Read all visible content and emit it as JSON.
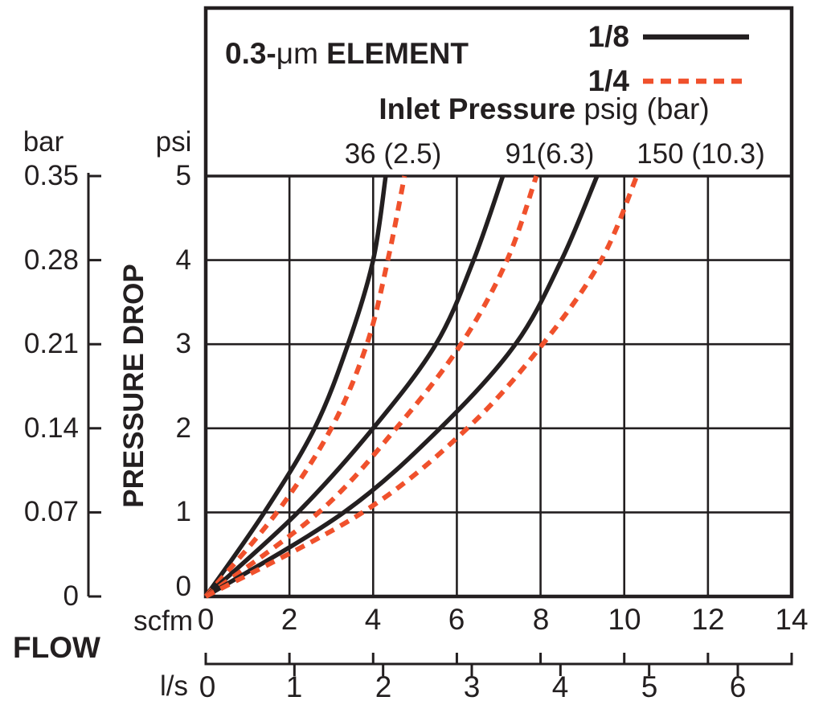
{
  "colors": {
    "ink": "#231F20",
    "accent": "#F0512C",
    "background": "#FFFFFF"
  },
  "header": {
    "title_prefix": "0.3-",
    "title_unit": "μm",
    "title_suffix": " ELEMENT",
    "inlet_label_bold": "Inlet Pressure",
    "inlet_label_normal": " psig (bar)",
    "pressure_labels": [
      "36 (2.5)",
      "91(6.3)",
      "150 (10.3)"
    ]
  },
  "legend": {
    "items": [
      {
        "label": "1/8",
        "style": "solid",
        "color": "#231F20"
      },
      {
        "label": "1/4",
        "style": "dashed",
        "color": "#F0512C"
      }
    ]
  },
  "axes": {
    "y_title": "PRESSURE DROP",
    "x_title": "FLOW",
    "bar": {
      "unit": "bar",
      "ticks": [
        "0.35",
        "0.28",
        "0.21",
        "0.14",
        "0.07",
        "0"
      ]
    },
    "psi": {
      "unit": "psi",
      "ticks": [
        "5",
        "4",
        "3",
        "2",
        "1",
        "0"
      ]
    },
    "scfm": {
      "unit": "scfm",
      "ticks": [
        "0",
        "2",
        "4",
        "6",
        "8",
        "10",
        "12",
        "14"
      ]
    },
    "ls": {
      "unit": "l/s",
      "ticks": [
        "0",
        "1",
        "2",
        "3",
        "4",
        "5",
        "6"
      ]
    }
  },
  "chart_data": {
    "type": "line",
    "title": "0.3-μm ELEMENT",
    "subtitle": "Inlet Pressure psig (bar)",
    "xlabel": "FLOW",
    "ylabel": "PRESSURE DROP",
    "grid": true,
    "legend_position": "top-right",
    "x_axis": {
      "unit": "scfm",
      "range": [
        0,
        14
      ],
      "ticks": [
        0,
        2,
        4,
        6,
        8,
        10,
        12,
        14
      ],
      "secondary_unit": "l/s",
      "secondary_ticks": [
        0,
        1,
        2,
        3,
        4,
        5,
        6
      ],
      "scfm_per_ls": 2.1189
    },
    "y_axis": {
      "unit": "psi",
      "range": [
        0,
        5
      ],
      "ticks": [
        0,
        1,
        2,
        3,
        4,
        5
      ],
      "secondary_unit": "bar",
      "secondary_ticks": [
        0,
        0.07,
        0.14,
        0.21,
        0.28,
        0.35
      ]
    },
    "series": [
      {
        "name": "1/8 port, 36 psig (2.5 bar) inlet",
        "port": "1/8",
        "inlet": "36 (2.5)",
        "line": "solid",
        "points": [
          [
            0,
            0
          ],
          [
            1.4,
            1
          ],
          [
            2.6,
            2
          ],
          [
            3.4,
            3
          ],
          [
            4.0,
            4
          ],
          [
            4.3,
            5
          ]
        ]
      },
      {
        "name": "1/4 port, 36 psig (2.5 bar) inlet",
        "port": "1/4",
        "inlet": "36 (2.5)",
        "line": "dashed",
        "points": [
          [
            0,
            0
          ],
          [
            1.7,
            1
          ],
          [
            3.0,
            2
          ],
          [
            3.85,
            3
          ],
          [
            4.35,
            4
          ],
          [
            4.75,
            5
          ]
        ]
      },
      {
        "name": "1/8 port, 91 psig (6.3 bar) inlet",
        "port": "1/8",
        "inlet": "91(6.3)",
        "line": "solid",
        "points": [
          [
            0,
            0
          ],
          [
            2.2,
            1
          ],
          [
            4.0,
            2
          ],
          [
            5.5,
            3
          ],
          [
            6.4,
            4
          ],
          [
            7.1,
            5
          ]
        ]
      },
      {
        "name": "1/4 port, 91 psig (6.3 bar) inlet",
        "port": "1/4",
        "inlet": "91(6.3)",
        "line": "dashed",
        "points": [
          [
            0,
            0
          ],
          [
            2.7,
            1
          ],
          [
            4.55,
            2
          ],
          [
            6.1,
            3
          ],
          [
            7.2,
            4
          ],
          [
            7.9,
            5
          ]
        ]
      },
      {
        "name": "1/8 port, 150 psig (10.3 bar) inlet",
        "port": "1/8",
        "inlet": "150 (10.3)",
        "line": "solid",
        "points": [
          [
            0,
            0
          ],
          [
            3.3,
            1
          ],
          [
            5.6,
            2
          ],
          [
            7.4,
            3
          ],
          [
            8.5,
            4
          ],
          [
            9.35,
            5
          ]
        ]
      },
      {
        "name": "1/4 port, 150 psig (10.3 bar) inlet",
        "port": "1/4",
        "inlet": "150 (10.3)",
        "line": "dashed",
        "points": [
          [
            0,
            0
          ],
          [
            3.75,
            1
          ],
          [
            6.25,
            2
          ],
          [
            8.05,
            3
          ],
          [
            9.45,
            4
          ],
          [
            10.3,
            5
          ]
        ]
      }
    ]
  }
}
